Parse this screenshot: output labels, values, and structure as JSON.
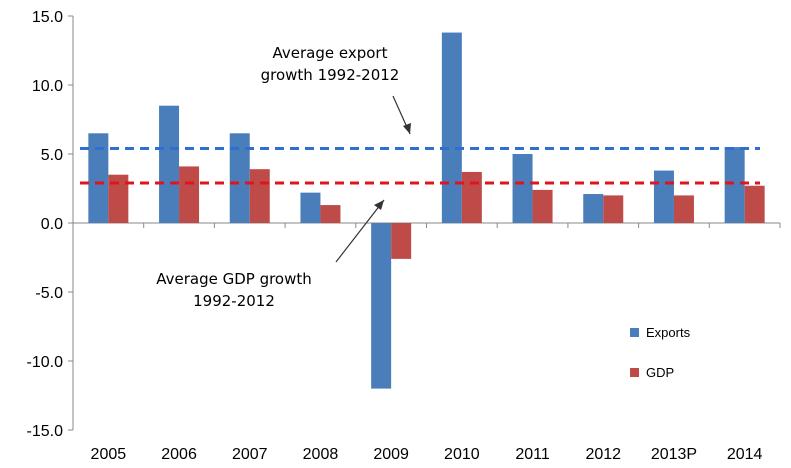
{
  "chart_data": {
    "type": "bar",
    "title": "",
    "xlabel": "",
    "ylabel": "",
    "categories": [
      "2005",
      "2006",
      "2007",
      "2008",
      "2009",
      "2010",
      "2011",
      "2012",
      "2013P",
      "2014"
    ],
    "series": [
      {
        "name": "Exports",
        "color": "#4a7ebb",
        "values": [
          6.5,
          8.5,
          6.5,
          2.2,
          -12.0,
          13.8,
          5.0,
          2.1,
          3.8,
          5.5
        ]
      },
      {
        "name": "GDP",
        "color": "#be4b48",
        "values": [
          3.5,
          4.1,
          3.9,
          1.3,
          -2.6,
          3.7,
          2.4,
          2.0,
          2.0,
          2.7
        ]
      }
    ],
    "ylim": [
      -15,
      15
    ],
    "yticks": [
      "15.0",
      "10.0",
      "5.0",
      "0.0",
      "-5.0",
      "-10.0",
      "-15.0"
    ],
    "gridlines": false,
    "legend_position": "right",
    "reference_lines": [
      {
        "label_lines": [
          "Average export",
          "growth 1992-2012"
        ],
        "value": 5.4,
        "color": "#2e6fd0",
        "style": "dashed"
      },
      {
        "label_lines": [
          "Average GDP growth",
          "1992-2012"
        ],
        "value": 2.9,
        "color": "#e0141e",
        "style": "dashed"
      }
    ]
  }
}
